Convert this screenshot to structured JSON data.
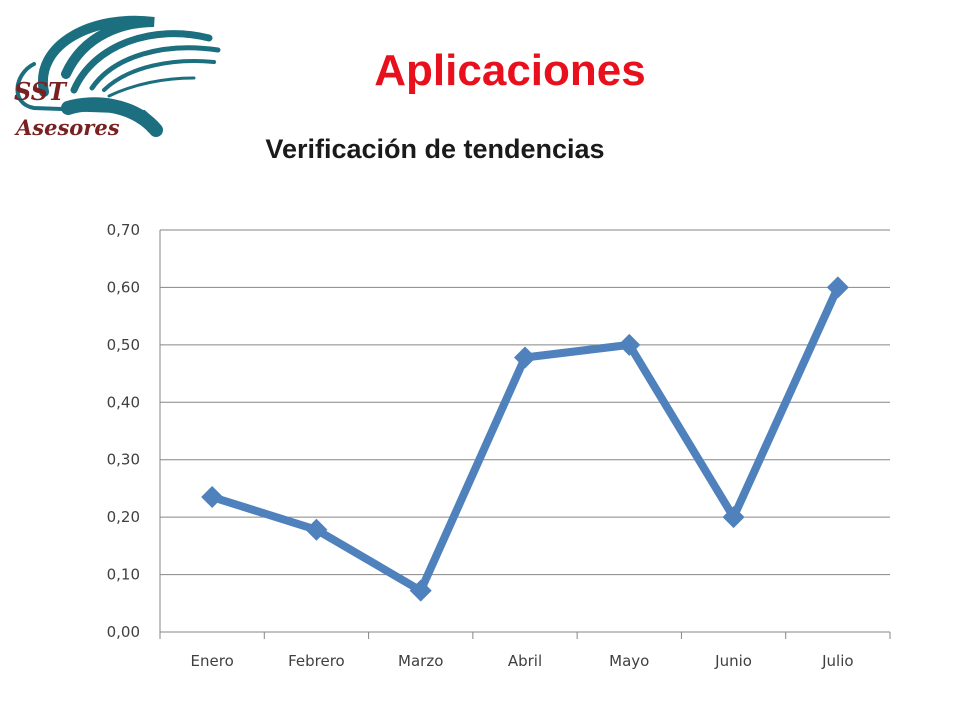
{
  "header": {
    "title": "Aplicaciones",
    "logo_text_line1": "SST",
    "logo_text_line2": "Asesores"
  },
  "colors": {
    "title": "#e8101c",
    "logo": "#1c6f7f",
    "logo_text": "#7a2020",
    "series": "#4f81bd",
    "grid": "#868686"
  },
  "chart_data": {
    "type": "line",
    "title": "Verificación de tendencias",
    "categories": [
      "Enero",
      "Febrero",
      "Marzo",
      "Abril",
      "Mayo",
      "Junio",
      "Julio"
    ],
    "series": [
      {
        "values": [
          0.235,
          0.178,
          0.072,
          0.478,
          0.5,
          0.2,
          0.6
        ]
      }
    ],
    "ylim": [
      0,
      0.7
    ],
    "yticks": [
      "0,00",
      "0,10",
      "0,20",
      "0,30",
      "0,40",
      "0,50",
      "0,60",
      "0,70"
    ],
    "marker": "diamond",
    "grid": "horizontal",
    "legend": "none",
    "xlabel": "",
    "ylabel": ""
  }
}
